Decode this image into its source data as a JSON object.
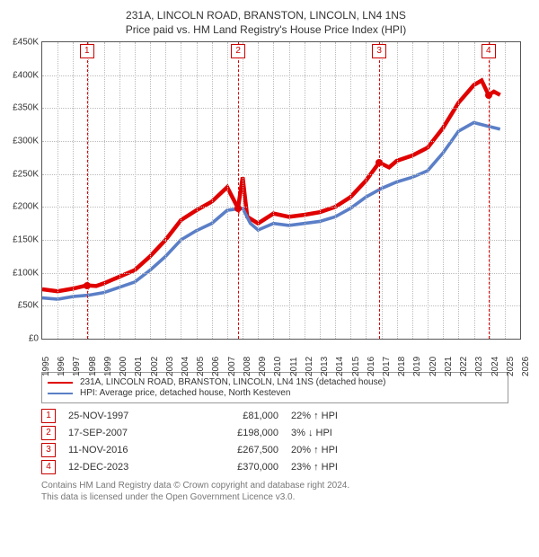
{
  "title1": "231A, LINCOLN ROAD, BRANSTON, LINCOLN, LN4 1NS",
  "title2": "Price paid vs. HM Land Registry's House Price Index (HPI)",
  "chart": {
    "type": "line",
    "background_color": "#ffffff",
    "grid_color": "#bbbbbb",
    "axis_color": "#555555",
    "xlim": [
      1995,
      2026
    ],
    "ylim": [
      0,
      450000
    ],
    "ytick_step": 50000,
    "ytick_labels": [
      "£0",
      "£50K",
      "£100K",
      "£150K",
      "£200K",
      "£250K",
      "£300K",
      "£350K",
      "£400K",
      "£450K"
    ],
    "xticks": [
      1995,
      1996,
      1997,
      1998,
      1999,
      2000,
      2001,
      2002,
      2003,
      2004,
      2005,
      2006,
      2007,
      2008,
      2009,
      2010,
      2011,
      2012,
      2013,
      2014,
      2015,
      2016,
      2017,
      2018,
      2019,
      2020,
      2021,
      2022,
      2023,
      2024,
      2025,
      2026
    ],
    "label_fontsize": 10,
    "series": [
      {
        "name": "231A, LINCOLN ROAD, BRANSTON, LINCOLN, LN4 1NS (detached house)",
        "color": "#e00000",
        "line_width": 1.5,
        "data": [
          [
            1995,
            75000
          ],
          [
            1996,
            72000
          ],
          [
            1997,
            76000
          ],
          [
            1997.9,
            81000
          ],
          [
            1998.5,
            80000
          ],
          [
            1999,
            84000
          ],
          [
            2000,
            94000
          ],
          [
            2001,
            104000
          ],
          [
            2002,
            125000
          ],
          [
            2003,
            150000
          ],
          [
            2004,
            180000
          ],
          [
            2005,
            195000
          ],
          [
            2006,
            208000
          ],
          [
            2007,
            230000
          ],
          [
            2007.7,
            198000
          ],
          [
            2008,
            245000
          ],
          [
            2008.3,
            185000
          ],
          [
            2009,
            175000
          ],
          [
            2010,
            190000
          ],
          [
            2011,
            185000
          ],
          [
            2012,
            188000
          ],
          [
            2013,
            192000
          ],
          [
            2014,
            200000
          ],
          [
            2015,
            215000
          ],
          [
            2016,
            240000
          ],
          [
            2016.86,
            267500
          ],
          [
            2017.5,
            260000
          ],
          [
            2018,
            270000
          ],
          [
            2019,
            278000
          ],
          [
            2020,
            290000
          ],
          [
            2021,
            320000
          ],
          [
            2022,
            358000
          ],
          [
            2023,
            385000
          ],
          [
            2023.5,
            392000
          ],
          [
            2023.95,
            370000
          ],
          [
            2024.3,
            375000
          ],
          [
            2024.7,
            370000
          ]
        ]
      },
      {
        "name": "HPI: Average price, detached house, North Kesteven",
        "color": "#5b7fc7",
        "line_width": 1.2,
        "data": [
          [
            1995,
            62000
          ],
          [
            1996,
            60000
          ],
          [
            1997,
            64000
          ],
          [
            1998,
            66000
          ],
          [
            1999,
            70000
          ],
          [
            2000,
            78000
          ],
          [
            2001,
            86000
          ],
          [
            2002,
            104000
          ],
          [
            2003,
            125000
          ],
          [
            2004,
            150000
          ],
          [
            2005,
            164000
          ],
          [
            2006,
            175000
          ],
          [
            2007,
            195000
          ],
          [
            2008,
            198000
          ],
          [
            2008.5,
            175000
          ],
          [
            2009,
            165000
          ],
          [
            2010,
            175000
          ],
          [
            2011,
            172000
          ],
          [
            2012,
            175000
          ],
          [
            2013,
            178000
          ],
          [
            2014,
            185000
          ],
          [
            2015,
            198000
          ],
          [
            2016,
            215000
          ],
          [
            2017,
            228000
          ],
          [
            2018,
            238000
          ],
          [
            2019,
            245000
          ],
          [
            2020,
            255000
          ],
          [
            2021,
            282000
          ],
          [
            2022,
            315000
          ],
          [
            2023,
            328000
          ],
          [
            2024,
            322000
          ],
          [
            2024.7,
            318000
          ]
        ]
      }
    ],
    "markers": [
      {
        "n": 1,
        "x": 1997.9,
        "y": 81000,
        "color": "#e00000"
      },
      {
        "n": 2,
        "x": 2007.71,
        "y": 198000,
        "color": "#e00000"
      },
      {
        "n": 3,
        "x": 2016.86,
        "y": 267500,
        "color": "#e00000"
      },
      {
        "n": 4,
        "x": 2023.95,
        "y": 370000,
        "color": "#e00000"
      }
    ]
  },
  "legend": {
    "items": [
      {
        "label": "231A, LINCOLN ROAD, BRANSTON, LINCOLN, LN4 1NS (detached house)",
        "color": "#e00000"
      },
      {
        "label": "HPI: Average price, detached house, North Kesteven",
        "color": "#5b7fc7"
      }
    ]
  },
  "table": {
    "rows": [
      {
        "n": "1",
        "date": "25-NOV-1997",
        "price": "£81,000",
        "pct": "22% ↑ HPI"
      },
      {
        "n": "2",
        "date": "17-SEP-2007",
        "price": "£198,000",
        "pct": "3% ↓ HPI"
      },
      {
        "n": "3",
        "date": "11-NOV-2016",
        "price": "£267,500",
        "pct": "20% ↑ HPI"
      },
      {
        "n": "4",
        "date": "12-DEC-2023",
        "price": "£370,000",
        "pct": "23% ↑ HPI"
      }
    ]
  },
  "footer": {
    "line1": "Contains HM Land Registry data © Crown copyright and database right 2024.",
    "line2": "This data is licensed under the Open Government Licence v3.0."
  }
}
